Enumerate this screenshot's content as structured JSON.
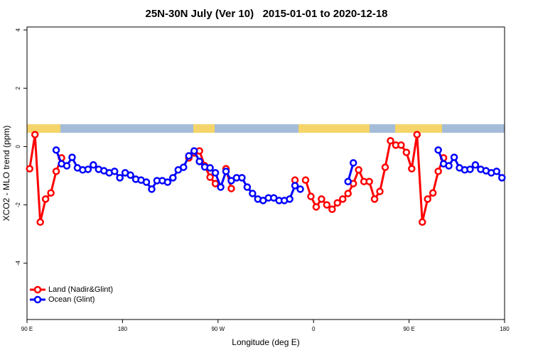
{
  "chart_data": {
    "type": "line",
    "title": "25N-30N July (Ver 10)   2015-01-01 to 2020-12-18",
    "xlabel": "Longitude (deg E)",
    "ylabel": "XCO2 - MLO trend (ppm)",
    "x": [
      92.5,
      97.5,
      102.5,
      107.5,
      112.5,
      117.5,
      122.5,
      127.5,
      132.5,
      137.5,
      142.5,
      147.5,
      152.5,
      157.5,
      162.5,
      167.5,
      172.5,
      177.5,
      182.5,
      187.5,
      192.5,
      197.5,
      202.5,
      207.5,
      212.5,
      217.5,
      222.5,
      227.5,
      232.5,
      237.5,
      242.5,
      247.5,
      252.5,
      257.5,
      262.5,
      267.5,
      272.5,
      277.5,
      282.5,
      287.5,
      292.5,
      297.5,
      302.5,
      307.5,
      312.5,
      317.5,
      322.5,
      327.5,
      332.5,
      337.5,
      342.5,
      347.5,
      352.5,
      357.5,
      362.5,
      367.5,
      372.5,
      377.5,
      382.5,
      387.5,
      392.5,
      397.5,
      402.5,
      407.5,
      412.5,
      417.5,
      422.5,
      427.5,
      432.5,
      437.5,
      442.5,
      447.5,
      452.5,
      457.5,
      462.5,
      467.5,
      472.5,
      477.5,
      482.5,
      487.5,
      492.5,
      497.5,
      502.5,
      507.5,
      512.5,
      517.5,
      522.5,
      527.5,
      532.5,
      537.5
    ],
    "series": [
      {
        "name": "Land (Nadir&Glint)",
        "color": "#ff0000",
        "values": [
          -0.76,
          0.41,
          -2.59,
          -1.8,
          -1.59,
          -0.85,
          -0.39,
          null,
          null,
          null,
          null,
          null,
          null,
          null,
          null,
          null,
          null,
          null,
          null,
          null,
          null,
          null,
          null,
          null,
          null,
          null,
          null,
          null,
          null,
          null,
          -0.39,
          -0.22,
          -0.15,
          -0.66,
          -1.05,
          -1.27,
          null,
          -0.76,
          -1.44,
          null,
          null,
          null,
          null,
          null,
          null,
          null,
          null,
          null,
          null,
          null,
          -1.15,
          null,
          -1.15,
          -1.71,
          -2.07,
          -1.8,
          -2.0,
          -2.15,
          -1.93,
          -1.8,
          -1.61,
          -1.27,
          -0.8,
          -1.2,
          -1.2,
          -1.8,
          -1.54,
          -0.71,
          0.2,
          0.05,
          0.05,
          -0.2,
          -0.76,
          0.41,
          -2.59,
          -1.8,
          -1.59,
          -0.85,
          -0.39,
          null,
          null,
          null,
          null,
          null,
          null,
          null,
          null,
          null,
          null,
          null
        ]
      },
      {
        "name": "Ocean (Glint)",
        "color": "#0000ff",
        "values": [
          null,
          null,
          null,
          null,
          null,
          -0.12,
          -0.59,
          -0.66,
          -0.37,
          -0.73,
          -0.8,
          -0.78,
          -0.63,
          -0.78,
          -0.83,
          -0.9,
          -0.85,
          -1.07,
          -0.9,
          -0.98,
          -1.12,
          -1.15,
          -1.22,
          -1.46,
          -1.17,
          -1.17,
          -1.22,
          -1.07,
          -0.8,
          -0.71,
          -0.32,
          -0.15,
          -0.51,
          -0.7,
          -0.73,
          -0.9,
          -1.39,
          -0.85,
          -1.17,
          -1.07,
          -1.07,
          -1.39,
          -1.61,
          -1.8,
          -1.85,
          -1.76,
          -1.76,
          -1.85,
          -1.85,
          -1.8,
          -1.34,
          -1.46,
          null,
          null,
          null,
          null,
          null,
          null,
          null,
          null,
          -1.2,
          -0.56,
          null,
          null,
          null,
          null,
          null,
          null,
          null,
          null,
          null,
          null,
          null,
          null,
          null,
          null,
          null,
          -0.12,
          -0.59,
          -0.66,
          -0.37,
          -0.73,
          -0.8,
          -0.78,
          -0.63,
          -0.78,
          -0.83,
          -0.9,
          -0.85,
          -1.07
        ]
      }
    ],
    "xlim": [
      90,
      540
    ],
    "xticks": [
      {
        "value": 90,
        "label": "90 E"
      },
      180,
      {
        "value": 270,
        "label": "90 W"
      },
      {
        "value": 360,
        "label": "0"
      },
      {
        "value": 450,
        "label": "90 E"
      },
      {
        "value": 540,
        "label": "180"
      }
    ],
    "ylim": [
      -5.93,
      4.1
    ],
    "yticks": [
      -4,
      -2,
      0,
      2,
      4
    ],
    "legend": "bottom-left"
  }
}
